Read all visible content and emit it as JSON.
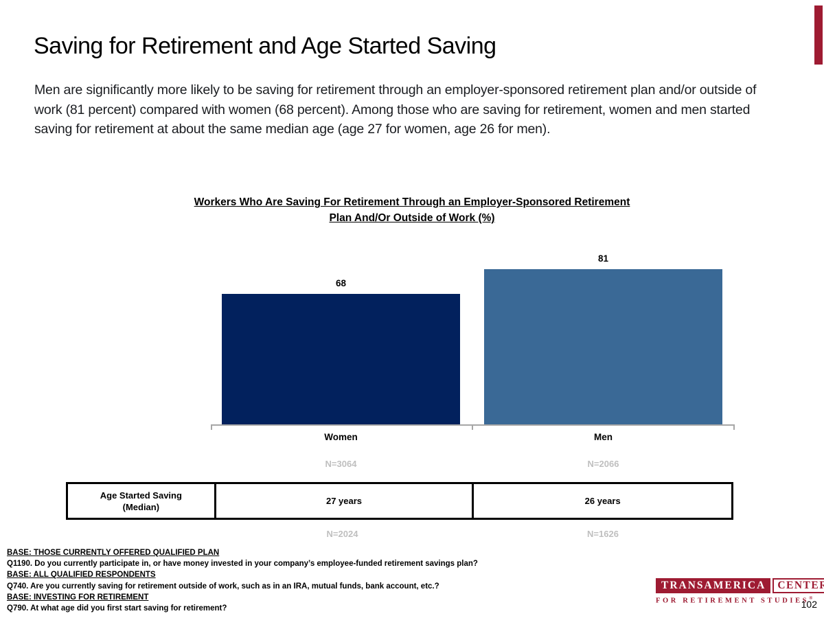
{
  "slide": {
    "title": "Saving for Retirement and Age Started Saving",
    "paragraph": "Men are significantly more likely to be saving for retirement through an employer-sponsored retirement plan and/or outside of work (81 percent) compared with women (68 percent). Among those who are saving for retirement, women and men started saving for retirement at about the same median age (age 27 for women, age 26 for men).",
    "page_number": "102",
    "accent_color": "#9e1b32"
  },
  "chart_data": {
    "type": "bar",
    "title": "Workers Who Are Saving For Retirement Through an Employer-Sponsored Retirement Plan And/Or Outside of Work (%)",
    "categories": [
      "Women",
      "Men"
    ],
    "values": [
      68,
      81
    ],
    "value_labels": [
      "68",
      "81"
    ],
    "sample_sizes": [
      "N=3064",
      "N=2066"
    ],
    "bar_colors": [
      "#02215d",
      "#3a6996"
    ],
    "ylim": [
      0,
      100
    ],
    "grid": false,
    "legend": "none",
    "axis_color": "#a6a6a6"
  },
  "table": {
    "header_line1": "Age Started Saving",
    "header_line2": "(Median)",
    "cells": [
      "27 years",
      "26 years"
    ],
    "sample_sizes": [
      "N=2024",
      "N=1626"
    ]
  },
  "footnotes": [
    {
      "text": "BASE: THOSE CURRENTLY OFFERED QUALIFIED PLAN"
    },
    {
      "text": "Q1190. Do you currently participate in, or have money invested in your company’s employee-funded retirement savings plan?"
    },
    {
      "text": "BASE: ALL QUALIFIED RESPONDENTS"
    },
    {
      "text": "Q740. Are you currently saving for retirement outside of work, such as in an IRA, mutual funds, bank account, etc.?"
    },
    {
      "text": "BASE: INVESTING FOR RETIREMENT"
    },
    {
      "text": "Q790. At what age did you first start saving for retirement?"
    }
  ],
  "logo": {
    "primary": "TRANSAMERICA",
    "secondary": "CENTER",
    "subtitle": "FOR RETIREMENT STUDIES",
    "registered": "®",
    "color": "#9e1b32"
  }
}
